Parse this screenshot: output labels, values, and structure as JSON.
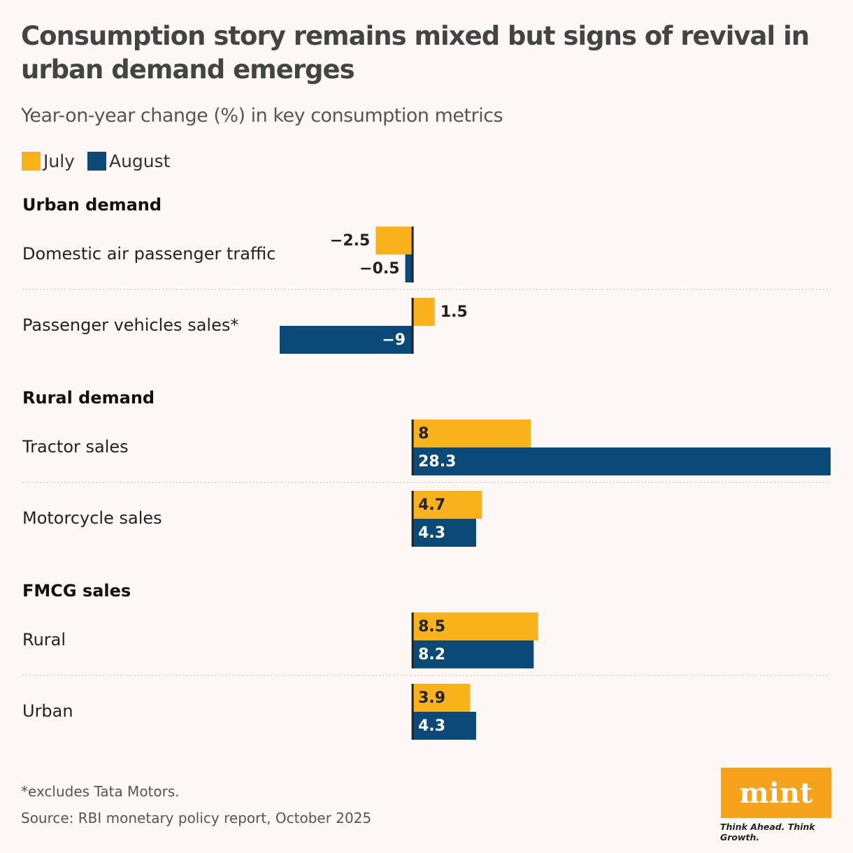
{
  "chart_data": {
    "type": "bar",
    "title": "Consumption story remains mixed but signs of revival in urban demand emerges",
    "subtitle": "Year-on-year change (%) in key consumption metrics",
    "groups": [
      {
        "label": "Urban demand",
        "categories": [
          "Domestic air passenger traffic",
          "Passenger vehicles sales*"
        ]
      },
      {
        "label": "Rural demand",
        "categories": [
          "Tractor sales",
          "Motorcycle sales"
        ]
      },
      {
        "label": "FMCG sales",
        "categories": [
          "Rural",
          "Urban"
        ]
      }
    ],
    "series": [
      {
        "name": "July",
        "color": "#f9b21a",
        "values": [
          -2.5,
          1.5,
          8,
          4.7,
          8.5,
          3.9
        ],
        "value_labels": [
          "−2.5",
          "1.5",
          "8",
          "4.7",
          "8.5",
          "3.9"
        ]
      },
      {
        "name": "August",
        "color": "#0b4a78",
        "values": [
          -0.5,
          -9,
          28.3,
          4.3,
          8.2,
          4.3
        ],
        "value_labels": [
          "−0.5",
          "−9",
          "28.3",
          "4.3",
          "8.2",
          "4.3"
        ]
      }
    ],
    "xlim": [
      -9,
      28.3
    ],
    "footnote": "*excludes Tata Motors.",
    "source": "Source: RBI monetary policy report, October 2025"
  },
  "logo": {
    "name": "mint",
    "tagline": "Think Ahead. Think Growth."
  }
}
